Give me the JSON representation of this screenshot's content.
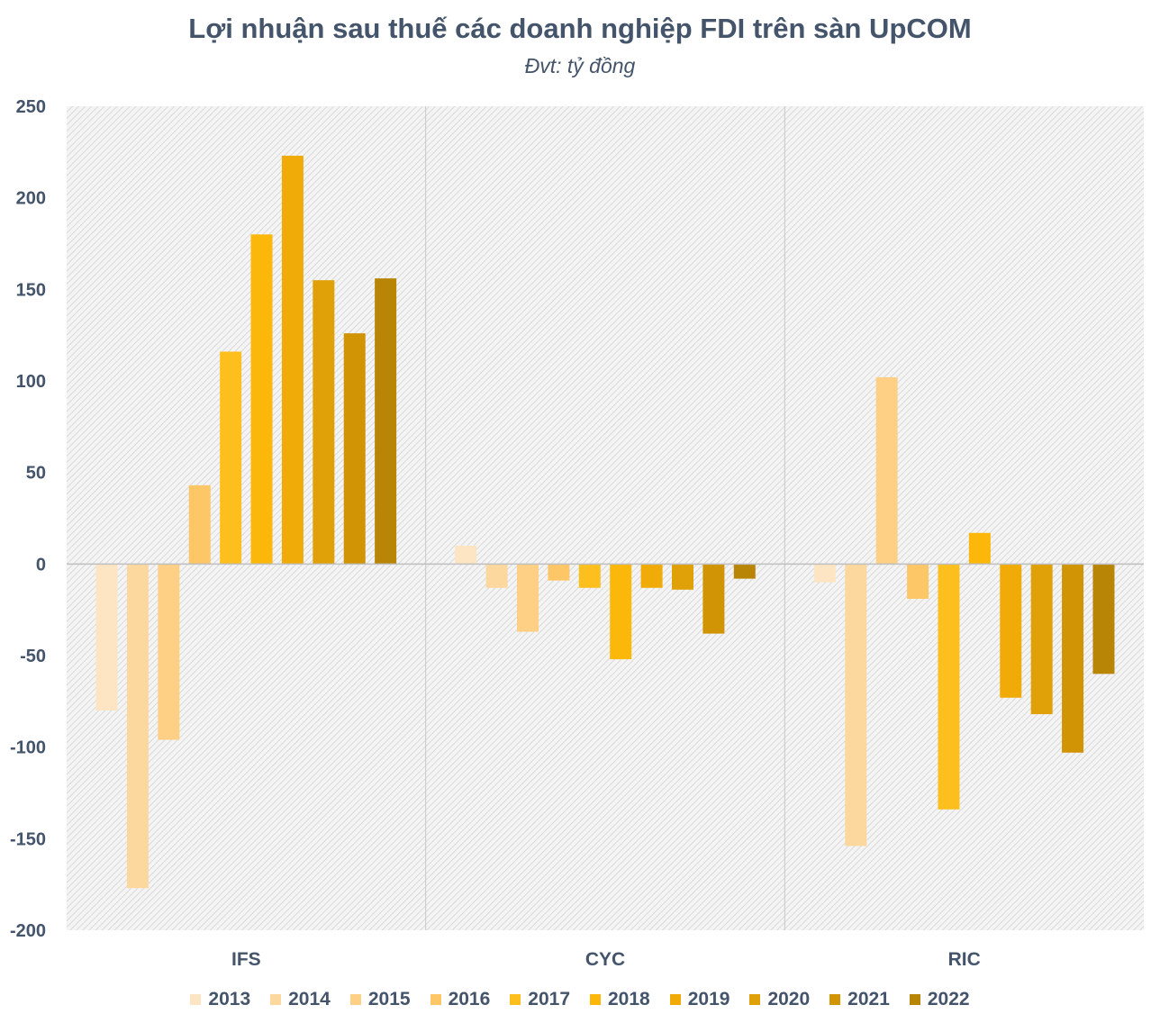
{
  "chart_data": {
    "type": "bar",
    "title": "Lợi nhuận sau thuế các doanh nghiệp FDI trên sàn UpCOM",
    "subtitle": "Đvt: tỷ đồng",
    "categories": [
      "IFS",
      "CYC",
      "RIC"
    ],
    "ylim": [
      -200,
      250
    ],
    "yticks": [
      250,
      200,
      150,
      100,
      50,
      0,
      -50,
      -100,
      -150,
      -200
    ],
    "grid": false,
    "legend_position": "bottom",
    "series": [
      {
        "name": "2013",
        "color": "#fde5c3",
        "values": [
          -80,
          10,
          -10
        ]
      },
      {
        "name": "2014",
        "color": "#fdd89e",
        "values": [
          -177,
          -13,
          -154
        ]
      },
      {
        "name": "2015",
        "color": "#fdd085",
        "values": [
          -96,
          -37,
          102
        ]
      },
      {
        "name": "2016",
        "color": "#fdc767",
        "values": [
          43,
          -9,
          -19
        ]
      },
      {
        "name": "2017",
        "color": "#fdbf1e",
        "values": [
          116,
          -13,
          -134
        ]
      },
      {
        "name": "2018",
        "color": "#fcb80a",
        "values": [
          180,
          -52,
          17
        ]
      },
      {
        "name": "2019",
        "color": "#f0ab08",
        "values": [
          223,
          -13,
          -73
        ]
      },
      {
        "name": "2020",
        "color": "#e0a007",
        "values": [
          155,
          -14,
          -82
        ]
      },
      {
        "name": "2021",
        "color": "#d09405",
        "values": [
          126,
          -38,
          -103
        ]
      },
      {
        "name": "2022",
        "color": "#b88507",
        "values": [
          156,
          -8,
          -60
        ]
      }
    ]
  }
}
